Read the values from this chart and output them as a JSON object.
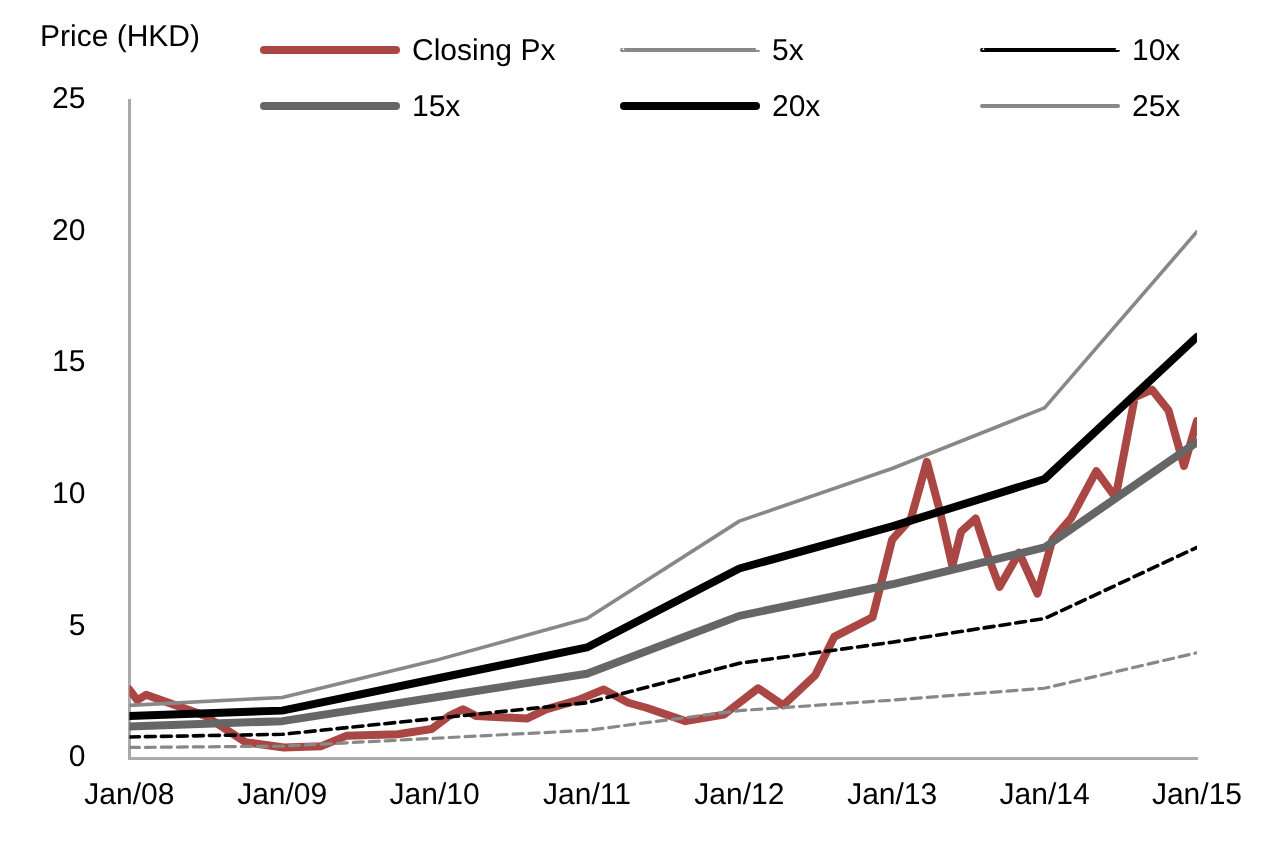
{
  "chart_data": {
    "type": "line",
    "ylabel": "Price (HKD)",
    "legend": "top",
    "marker": "none",
    "grid": false,
    "xlim": [
      "2008-01",
      "2015-01"
    ],
    "xticks": [
      {
        "value": "2008-01",
        "label": "Jan/08"
      },
      {
        "value": "2009-01",
        "label": "Jan/09"
      },
      {
        "value": "2010-01",
        "label": "Jan/10"
      },
      {
        "value": "2011-01",
        "label": "Jan/11"
      },
      {
        "value": "2012-01",
        "label": "Jan/12"
      },
      {
        "value": "2013-01",
        "label": "Jan/13"
      },
      {
        "value": "2014-01",
        "label": "Jan/14"
      },
      {
        "value": "2015-01",
        "label": "Jan/15"
      }
    ],
    "ylim": [
      0,
      25
    ],
    "yticks": [
      0,
      5,
      10,
      15,
      20,
      25
    ],
    "series": [
      {
        "name": "Closing Px",
        "color": "#aa4643",
        "line_style": "solid",
        "x": [
          "2008-01-01",
          "2008-01-20",
          "2008-02-10",
          "2008-07-01",
          "2008-10-05",
          "2009-01-05",
          "2009-04-05",
          "2009-06-05",
          "2009-10-05",
          "2009-12-25",
          "2010-02-05",
          "2010-03-10",
          "2010-04-10",
          "2010-08-10",
          "2010-09-25",
          "2010-12-10",
          "2011-02-10",
          "2011-04-10",
          "2011-05-25",
          "2011-08-25",
          "2011-11-25",
          "2012-02-15",
          "2012-04-15",
          "2012-07-01",
          "2012-08-15",
          "2012-11-15",
          "2013-01-01",
          "2013-02-15",
          "2013-03-25",
          "2013-04-25",
          "2013-05-25",
          "2013-06-15",
          "2013-07-20",
          "2013-08-20",
          "2013-09-15",
          "2013-11-01",
          "2013-12-15",
          "2014-01-20",
          "2014-03-05",
          "2014-05-05",
          "2014-06-20",
          "2014-08-05",
          "2014-09-15",
          "2014-10-25",
          "2014-12-01",
          "2015-01-01"
        ],
        "values": [
          2.6,
          2.2,
          2.4,
          1.6,
          0.6,
          0.4,
          0.45,
          0.85,
          0.9,
          1.1,
          1.6,
          1.85,
          1.6,
          1.5,
          1.85,
          2.2,
          2.6,
          2.1,
          1.9,
          1.4,
          1.65,
          2.65,
          2.0,
          3.15,
          4.6,
          5.35,
          8.3,
          9.1,
          11.25,
          9.4,
          7.3,
          8.6,
          9.1,
          7.6,
          6.5,
          7.8,
          6.25,
          8.3,
          9.1,
          10.9,
          9.9,
          13.7,
          14.0,
          13.2,
          11.1,
          12.8
        ]
      },
      {
        "name": "5x",
        "color": "#888888",
        "line_style": "dashed",
        "x": [
          "2008-01",
          "2009-01",
          "2010-01",
          "2011-01",
          "2012-01",
          "2013-01",
          "2014-01",
          "2015-01"
        ],
        "values": [
          0.4,
          0.45,
          0.75,
          1.05,
          1.8,
          2.2,
          2.65,
          4.0
        ]
      },
      {
        "name": "10x",
        "color": "#000000",
        "line_style": "dashed",
        "x": [
          "2008-01",
          "2009-01",
          "2010-01",
          "2011-01",
          "2012-01",
          "2013-01",
          "2014-01",
          "2015-01"
        ],
        "values": [
          0.8,
          0.9,
          1.5,
          2.1,
          3.6,
          4.4,
          5.3,
          8.0
        ]
      },
      {
        "name": "15x",
        "color": "#666666",
        "line_style": "solid",
        "x": [
          "2008-01",
          "2009-01",
          "2010-01",
          "2011-01",
          "2012-01",
          "2013-01",
          "2014-01",
          "2015-01"
        ],
        "values": [
          1.2,
          1.4,
          2.3,
          3.2,
          5.4,
          6.6,
          8.0,
          12.0
        ]
      },
      {
        "name": "20x",
        "color": "#000000",
        "line_style": "solid",
        "x": [
          "2008-01",
          "2009-01",
          "2010-01",
          "2011-01",
          "2012-01",
          "2013-01",
          "2014-01",
          "2015-01"
        ],
        "values": [
          1.6,
          1.8,
          3.0,
          4.2,
          7.2,
          8.8,
          10.6,
          16.0
        ]
      },
      {
        "name": "25x",
        "color": "#888888",
        "line_style": "solid",
        "x": [
          "2008-01",
          "2009-01",
          "2010-01",
          "2011-01",
          "2012-01",
          "2013-01",
          "2014-01",
          "2015-01"
        ],
        "values": [
          2.0,
          2.3,
          3.7,
          5.3,
          9.0,
          11.0,
          13.3,
          20.0
        ]
      }
    ]
  }
}
